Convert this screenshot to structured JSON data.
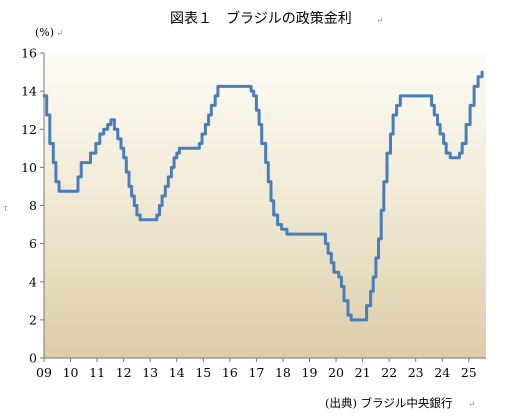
{
  "chart_data": {
    "type": "line",
    "title": "図表１　ブラジルの政策金利",
    "unit_label": "(%)",
    "source": "(出典) ブラジル中央銀行",
    "ylim": [
      0,
      16
    ],
    "y_ticks": [
      "0",
      "2",
      "4",
      "6",
      "8",
      "10",
      "12",
      "14",
      "16"
    ],
    "x_ticks": [
      "09",
      "10",
      "11",
      "12",
      "13",
      "14",
      "15",
      "16",
      "17",
      "18",
      "19",
      "20",
      "21",
      "22",
      "23",
      "24",
      "25"
    ],
    "xlim": [
      2009.0,
      2025.5
    ],
    "line_color": "#4a7ebb",
    "series": [
      {
        "name": "",
        "points": [
          [
            2009.0,
            13.75
          ],
          [
            2009.1,
            12.75
          ],
          [
            2009.22,
            11.25
          ],
          [
            2009.35,
            10.25
          ],
          [
            2009.45,
            9.25
          ],
          [
            2009.57,
            8.75
          ],
          [
            2010.28,
            9.5
          ],
          [
            2010.4,
            10.25
          ],
          [
            2010.75,
            10.75
          ],
          [
            2010.95,
            11.25
          ],
          [
            2011.1,
            11.75
          ],
          [
            2011.25,
            12.0
          ],
          [
            2011.4,
            12.25
          ],
          [
            2011.52,
            12.5
          ],
          [
            2011.65,
            12.0
          ],
          [
            2011.78,
            11.5
          ],
          [
            2011.9,
            11.0
          ],
          [
            2012.0,
            10.5
          ],
          [
            2012.1,
            9.75
          ],
          [
            2012.2,
            9.0
          ],
          [
            2012.3,
            8.5
          ],
          [
            2012.4,
            8.0
          ],
          [
            2012.5,
            7.5
          ],
          [
            2012.62,
            7.25
          ],
          [
            2013.25,
            7.5
          ],
          [
            2013.35,
            8.0
          ],
          [
            2013.45,
            8.5
          ],
          [
            2013.57,
            9.0
          ],
          [
            2013.68,
            9.5
          ],
          [
            2013.8,
            10.0
          ],
          [
            2013.9,
            10.5
          ],
          [
            2014.0,
            10.75
          ],
          [
            2014.1,
            11.0
          ],
          [
            2014.85,
            11.25
          ],
          [
            2014.95,
            11.75
          ],
          [
            2015.08,
            12.25
          ],
          [
            2015.2,
            12.75
          ],
          [
            2015.3,
            13.25
          ],
          [
            2015.45,
            13.75
          ],
          [
            2015.55,
            14.25
          ],
          [
            2016.8,
            14.0
          ],
          [
            2016.9,
            13.75
          ],
          [
            2017.0,
            13.0
          ],
          [
            2017.1,
            12.25
          ],
          [
            2017.2,
            11.25
          ],
          [
            2017.35,
            10.25
          ],
          [
            2017.45,
            9.25
          ],
          [
            2017.55,
            8.25
          ],
          [
            2017.65,
            7.5
          ],
          [
            2017.8,
            7.0
          ],
          [
            2017.95,
            6.75
          ],
          [
            2018.15,
            6.5
          ],
          [
            2019.6,
            6.0
          ],
          [
            2019.7,
            5.5
          ],
          [
            2019.82,
            5.0
          ],
          [
            2019.92,
            4.5
          ],
          [
            2020.1,
            4.25
          ],
          [
            2020.2,
            3.75
          ],
          [
            2020.3,
            3.0
          ],
          [
            2020.45,
            2.25
          ],
          [
            2020.57,
            2.0
          ],
          [
            2021.15,
            2.75
          ],
          [
            2021.3,
            3.5
          ],
          [
            2021.4,
            4.25
          ],
          [
            2021.5,
            5.25
          ],
          [
            2021.6,
            6.25
          ],
          [
            2021.7,
            7.75
          ],
          [
            2021.8,
            9.25
          ],
          [
            2021.92,
            10.75
          ],
          [
            2022.05,
            11.75
          ],
          [
            2022.15,
            12.75
          ],
          [
            2022.28,
            13.25
          ],
          [
            2022.42,
            13.75
          ],
          [
            2023.6,
            13.25
          ],
          [
            2023.7,
            12.75
          ],
          [
            2023.82,
            12.25
          ],
          [
            2023.92,
            11.75
          ],
          [
            2024.05,
            11.25
          ],
          [
            2024.15,
            10.75
          ],
          [
            2024.3,
            10.5
          ],
          [
            2024.65,
            10.75
          ],
          [
            2024.75,
            11.25
          ],
          [
            2024.9,
            12.25
          ],
          [
            2025.05,
            13.25
          ],
          [
            2025.2,
            14.25
          ],
          [
            2025.35,
            14.75
          ],
          [
            2025.5,
            15.0
          ]
        ]
      }
    ]
  }
}
